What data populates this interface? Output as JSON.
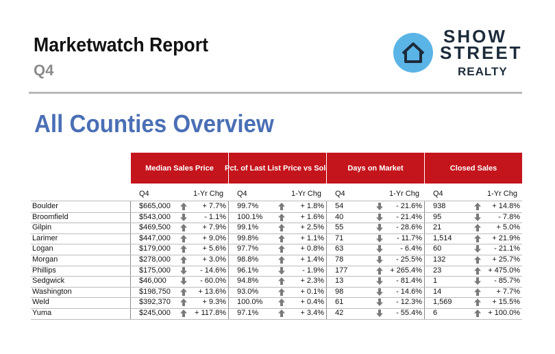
{
  "header": {
    "title": "Marketwatch Report",
    "subtitle": "Q4",
    "logo": {
      "line1": "SHOW",
      "line2": "STREET",
      "line3": "REALTY"
    }
  },
  "heading": "All Counties Overview",
  "table": {
    "groups": [
      "Median Sales Price",
      "Pct. of Last List Price vs Sold",
      "Days on Market",
      "Closed Sales"
    ],
    "subheaders": [
      "Q4",
      "1-Yr Chg"
    ],
    "rows": [
      [
        "Boulder",
        "$665,000",
        "+ 7.7%",
        "99.7%",
        "+ 1.8%",
        "54",
        "- 21.6%",
        "938",
        "+ 14.8%"
      ],
      [
        "Broomfield",
        "$543,000",
        "- 1.1%",
        "100.1%",
        "+ 1.6%",
        "40",
        "- 21.4%",
        "95",
        "- 7.8%"
      ],
      [
        "Gilpin",
        "$469,500",
        "+ 7.9%",
        "99.1%",
        "+ 2.5%",
        "55",
        "- 28.6%",
        "21",
        "+ 5.0%"
      ],
      [
        "Larimer",
        "$447,000",
        "+ 9.0%",
        "99.8%",
        "+ 1.1%",
        "71",
        "- 11.7%",
        "1,514",
        "+ 21.9%"
      ],
      [
        "Logan",
        "$179,000",
        "+ 5.6%",
        "97.7%",
        "+ 0.8%",
        "63",
        "- 6.4%",
        "60",
        "- 21.1%"
      ],
      [
        "Morgan",
        "$278,000",
        "+ 3.0%",
        "98.8%",
        "+ 1.4%",
        "78",
        "- 25.5%",
        "132",
        "+ 25.7%"
      ],
      [
        "Phillips",
        "$175,000",
        "- 14.6%",
        "96.1%",
        "- 1.9%",
        "177",
        "+ 265.4%",
        "23",
        "+ 475.0%"
      ],
      [
        "Sedgwick",
        "$46,000",
        "- 60.0%",
        "94.8%",
        "+ 2.3%",
        "13",
        "- 81.4%",
        "1",
        "- 85.7%"
      ],
      [
        "Washington",
        "$198,750",
        "+ 13.6%",
        "93.0%",
        "+ 0.1%",
        "98",
        "- 14.6%",
        "14",
        "+ 7.7%"
      ],
      [
        "Weld",
        "$392,370",
        "+ 9.3%",
        "100.0%",
        "+ 0.4%",
        "61",
        "- 12.3%",
        "1,569",
        "+ 15.5%"
      ],
      [
        "Yuma",
        "$245,000",
        "+ 117.8%",
        "97.1%",
        "+ 3.4%",
        "42",
        "- 55.4%",
        "6",
        "+ 100.0%"
      ]
    ]
  }
}
